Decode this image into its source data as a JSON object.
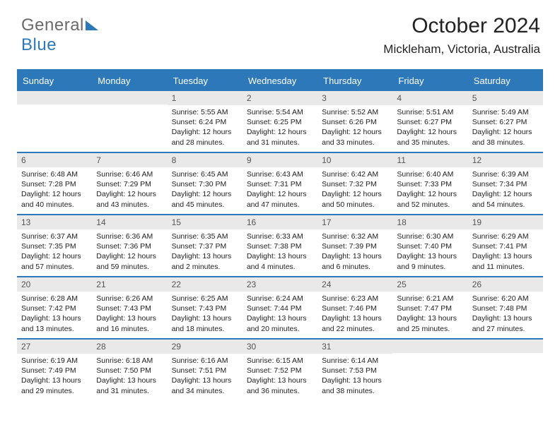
{
  "brand": {
    "part1": "General",
    "part2": "Blue"
  },
  "title": "October 2024",
  "location": "Mickleham, Victoria, Australia",
  "day_labels": [
    "Sunday",
    "Monday",
    "Tuesday",
    "Wednesday",
    "Thursday",
    "Friday",
    "Saturday"
  ],
  "colors": {
    "accent": "#2c78b8",
    "header_bg": "#2c78b8",
    "daynum_bg": "#e9e9e9"
  },
  "weeks": [
    [
      null,
      null,
      {
        "n": "1",
        "sunrise": "5:55 AM",
        "sunset": "6:24 PM",
        "daylight": "12 hours and 28 minutes."
      },
      {
        "n": "2",
        "sunrise": "5:54 AM",
        "sunset": "6:25 PM",
        "daylight": "12 hours and 31 minutes."
      },
      {
        "n": "3",
        "sunrise": "5:52 AM",
        "sunset": "6:26 PM",
        "daylight": "12 hours and 33 minutes."
      },
      {
        "n": "4",
        "sunrise": "5:51 AM",
        "sunset": "6:27 PM",
        "daylight": "12 hours and 35 minutes."
      },
      {
        "n": "5",
        "sunrise": "5:49 AM",
        "sunset": "6:27 PM",
        "daylight": "12 hours and 38 minutes."
      }
    ],
    [
      {
        "n": "6",
        "sunrise": "6:48 AM",
        "sunset": "7:28 PM",
        "daylight": "12 hours and 40 minutes."
      },
      {
        "n": "7",
        "sunrise": "6:46 AM",
        "sunset": "7:29 PM",
        "daylight": "12 hours and 43 minutes."
      },
      {
        "n": "8",
        "sunrise": "6:45 AM",
        "sunset": "7:30 PM",
        "daylight": "12 hours and 45 minutes."
      },
      {
        "n": "9",
        "sunrise": "6:43 AM",
        "sunset": "7:31 PM",
        "daylight": "12 hours and 47 minutes."
      },
      {
        "n": "10",
        "sunrise": "6:42 AM",
        "sunset": "7:32 PM",
        "daylight": "12 hours and 50 minutes."
      },
      {
        "n": "11",
        "sunrise": "6:40 AM",
        "sunset": "7:33 PM",
        "daylight": "12 hours and 52 minutes."
      },
      {
        "n": "12",
        "sunrise": "6:39 AM",
        "sunset": "7:34 PM",
        "daylight": "12 hours and 54 minutes."
      }
    ],
    [
      {
        "n": "13",
        "sunrise": "6:37 AM",
        "sunset": "7:35 PM",
        "daylight": "12 hours and 57 minutes."
      },
      {
        "n": "14",
        "sunrise": "6:36 AM",
        "sunset": "7:36 PM",
        "daylight": "12 hours and 59 minutes."
      },
      {
        "n": "15",
        "sunrise": "6:35 AM",
        "sunset": "7:37 PM",
        "daylight": "13 hours and 2 minutes."
      },
      {
        "n": "16",
        "sunrise": "6:33 AM",
        "sunset": "7:38 PM",
        "daylight": "13 hours and 4 minutes."
      },
      {
        "n": "17",
        "sunrise": "6:32 AM",
        "sunset": "7:39 PM",
        "daylight": "13 hours and 6 minutes."
      },
      {
        "n": "18",
        "sunrise": "6:30 AM",
        "sunset": "7:40 PM",
        "daylight": "13 hours and 9 minutes."
      },
      {
        "n": "19",
        "sunrise": "6:29 AM",
        "sunset": "7:41 PM",
        "daylight": "13 hours and 11 minutes."
      }
    ],
    [
      {
        "n": "20",
        "sunrise": "6:28 AM",
        "sunset": "7:42 PM",
        "daylight": "13 hours and 13 minutes."
      },
      {
        "n": "21",
        "sunrise": "6:26 AM",
        "sunset": "7:43 PM",
        "daylight": "13 hours and 16 minutes."
      },
      {
        "n": "22",
        "sunrise": "6:25 AM",
        "sunset": "7:43 PM",
        "daylight": "13 hours and 18 minutes."
      },
      {
        "n": "23",
        "sunrise": "6:24 AM",
        "sunset": "7:44 PM",
        "daylight": "13 hours and 20 minutes."
      },
      {
        "n": "24",
        "sunrise": "6:23 AM",
        "sunset": "7:46 PM",
        "daylight": "13 hours and 22 minutes."
      },
      {
        "n": "25",
        "sunrise": "6:21 AM",
        "sunset": "7:47 PM",
        "daylight": "13 hours and 25 minutes."
      },
      {
        "n": "26",
        "sunrise": "6:20 AM",
        "sunset": "7:48 PM",
        "daylight": "13 hours and 27 minutes."
      }
    ],
    [
      {
        "n": "27",
        "sunrise": "6:19 AM",
        "sunset": "7:49 PM",
        "daylight": "13 hours and 29 minutes."
      },
      {
        "n": "28",
        "sunrise": "6:18 AM",
        "sunset": "7:50 PM",
        "daylight": "13 hours and 31 minutes."
      },
      {
        "n": "29",
        "sunrise": "6:16 AM",
        "sunset": "7:51 PM",
        "daylight": "13 hours and 34 minutes."
      },
      {
        "n": "30",
        "sunrise": "6:15 AM",
        "sunset": "7:52 PM",
        "daylight": "13 hours and 36 minutes."
      },
      {
        "n": "31",
        "sunrise": "6:14 AM",
        "sunset": "7:53 PM",
        "daylight": "13 hours and 38 minutes."
      },
      null,
      null
    ]
  ],
  "labels": {
    "sunrise": "Sunrise: ",
    "sunset": "Sunset: ",
    "daylight": "Daylight: "
  }
}
